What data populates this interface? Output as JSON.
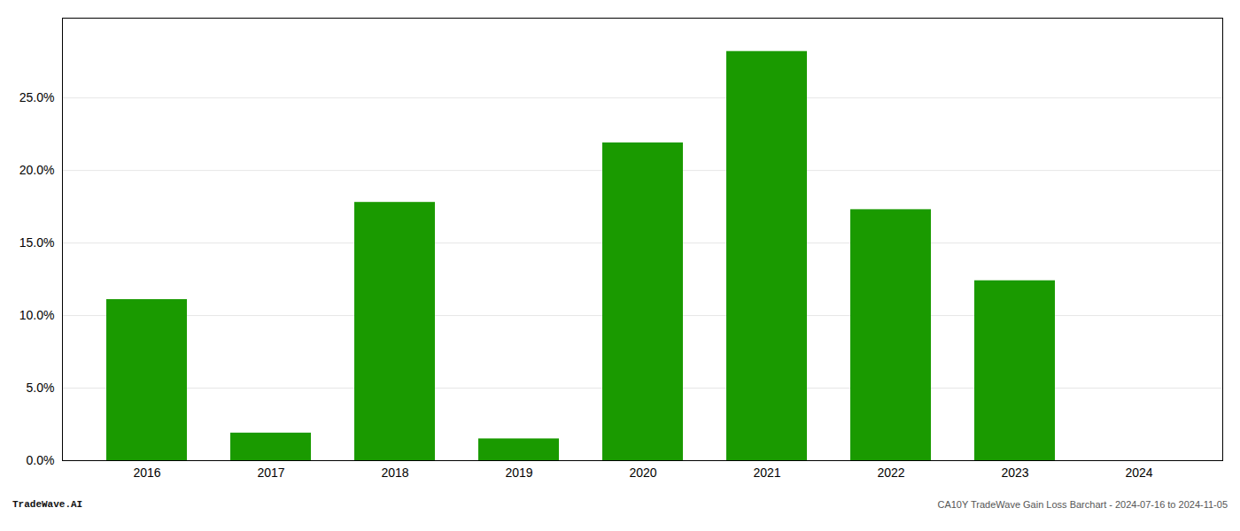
{
  "chart_data": {
    "type": "bar",
    "categories": [
      "2016",
      "2017",
      "2018",
      "2019",
      "2020",
      "2021",
      "2022",
      "2023",
      "2024"
    ],
    "values": [
      0.111,
      0.019,
      0.178,
      0.015,
      0.219,
      0.282,
      0.173,
      0.124,
      0.0
    ],
    "color": "#1a9a00",
    "ylim": [
      0,
      0.305
    ],
    "yticks": [
      {
        "value": 0.0,
        "label": "0.0%"
      },
      {
        "value": 0.05,
        "label": "5.0%"
      },
      {
        "value": 0.1,
        "label": "10.0%"
      },
      {
        "value": 0.15,
        "label": "15.0%"
      },
      {
        "value": 0.2,
        "label": "20.0%"
      },
      {
        "value": 0.25,
        "label": "25.0%"
      }
    ],
    "grid": true,
    "annotations": [
      "TradeWave.AI",
      "CA10Y TradeWave Gain Loss Barchart - 2024-07-16 to 2024-11-05"
    ]
  }
}
